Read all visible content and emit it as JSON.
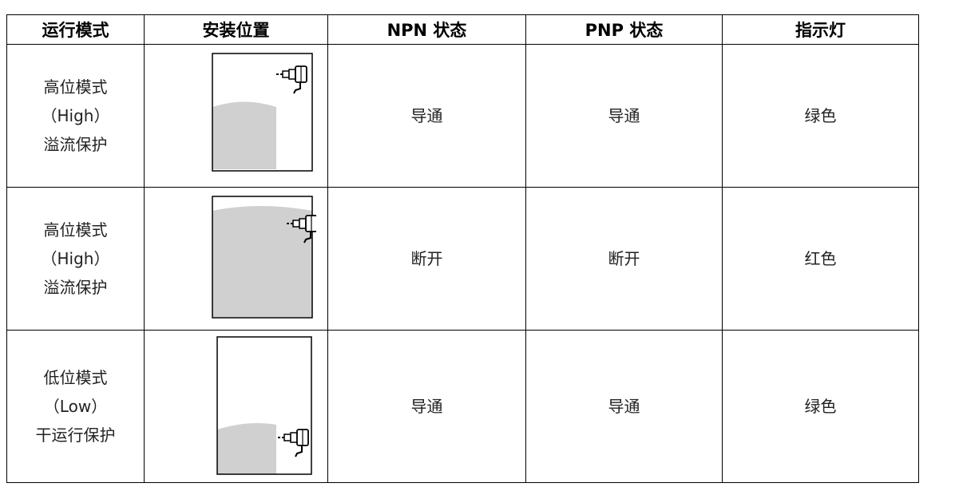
{
  "table": {
    "header": [
      "运行模式",
      "安装位置",
      "NPN 状态",
      "PNP 状态",
      "指示灯"
    ],
    "rows": [
      {
        "mode": [
          "高位模式",
          "（High）",
          "溢流保护"
        ],
        "npn": "导通",
        "pnp": "导通",
        "indicator": "绿色"
      },
      {
        "mode": [
          "高位模式",
          "（High）",
          "溢流保护"
        ],
        "npn": "断开",
        "pnp": "断开",
        "indicator": "红色"
      },
      {
        "mode": [
          "低位模式",
          "（Low）",
          "干运行保护"
        ],
        "npn": "导通",
        "pnp": "导通",
        "indicator": "绿色"
      }
    ]
  }
}
